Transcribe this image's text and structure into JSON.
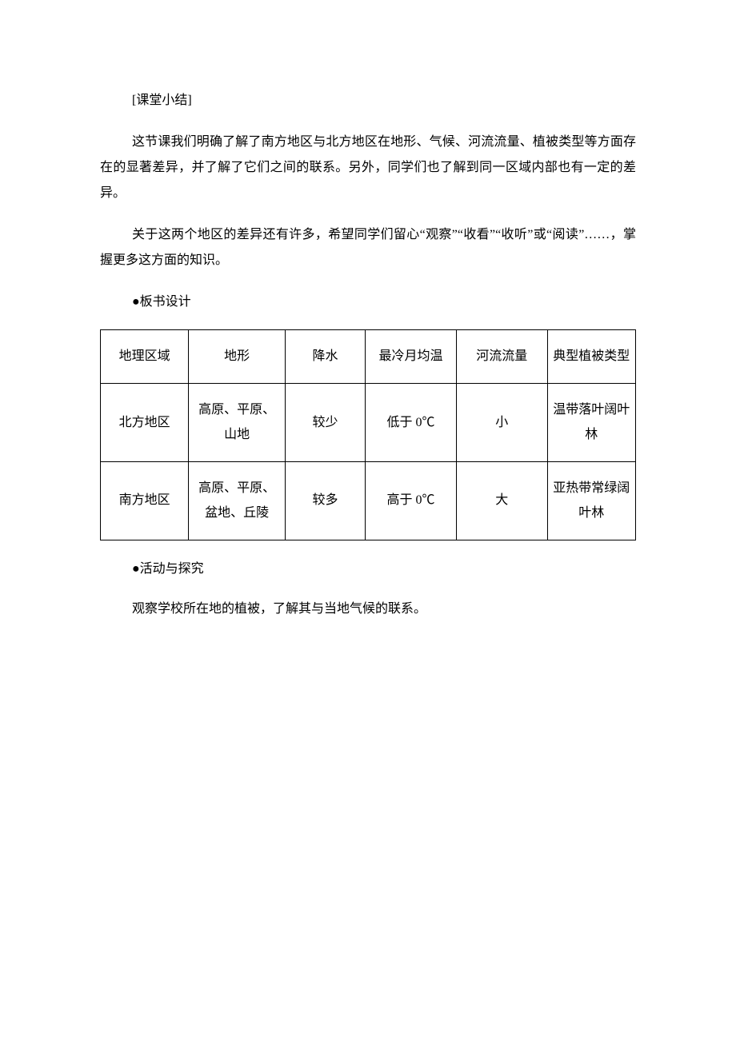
{
  "page": {
    "background_color": "#ffffff",
    "text_color": "#000000",
    "body_fontsize": 16
  },
  "summary": {
    "heading": "[课堂小结]",
    "para1": "这节课我们明确了解了南方地区与北方地区在地形、气候、河流流量、植被类型等方面存在的显著差异，并了解了它们之间的联系。另外，同学们也了解到同一区域内部也有一定的差异。",
    "para2": "关于这两个地区的差异还有许多，希望同学们留心“观察”“收看”“收听”或“阅读”……，掌握更多这方面的知识。"
  },
  "board": {
    "heading": "●板书设计",
    "table": {
      "type": "table",
      "border_color": "#000000",
      "cell_fontsize": 16,
      "columns": [
        "地理区域",
        "地形",
        "降水",
        "最冷月均温",
        "河流流量",
        "典型植被类型"
      ],
      "column_widths_pct": [
        16.5,
        18,
        15,
        17,
        17,
        16.5
      ],
      "rows": [
        [
          "北方地区",
          "高原、平原、山地",
          "较少",
          "低于 0℃",
          "小",
          "温带落叶阔叶林"
        ],
        [
          "南方地区",
          "高原、平原、盆地、丘陵",
          "较多",
          "高于 0℃",
          "大",
          "亚热带常绿阔叶林"
        ]
      ]
    }
  },
  "activity": {
    "heading": "●活动与探究",
    "text": "观察学校所在地的植被，了解其与当地气候的联系。"
  }
}
